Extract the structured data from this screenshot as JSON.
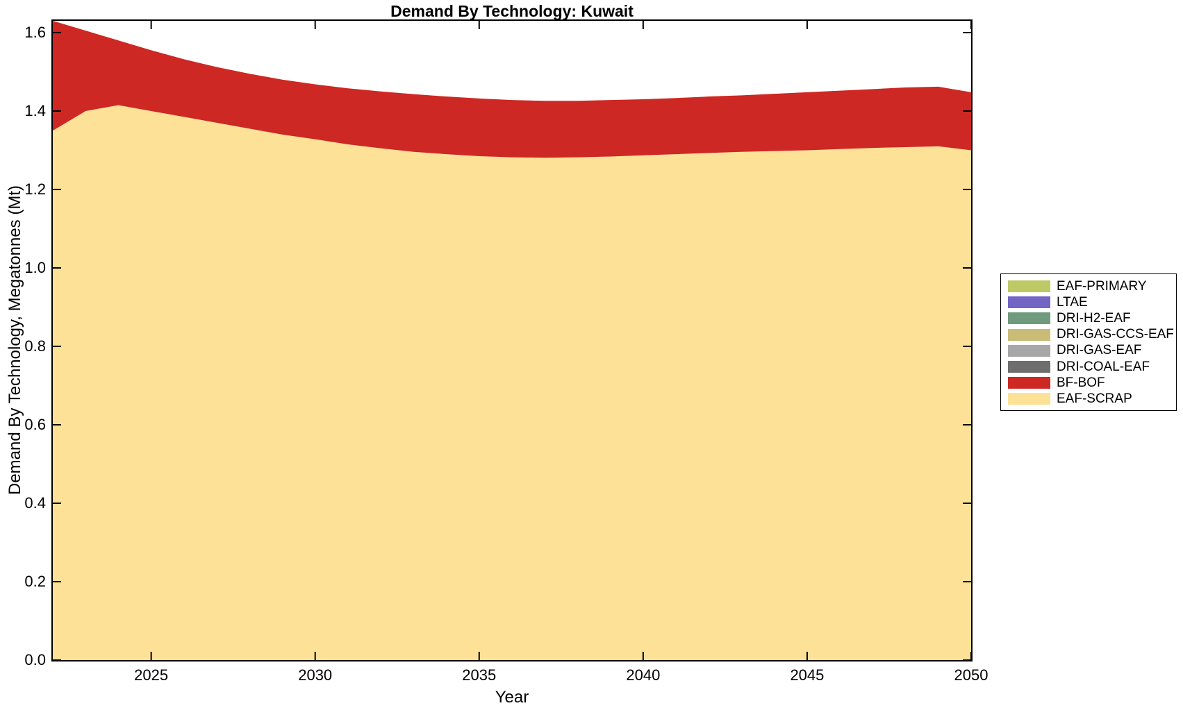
{
  "chart_data": {
    "type": "area",
    "stacked": true,
    "title": "Demand By Technology: Kuwait",
    "xlabel": "Year",
    "ylabel": "Demand By Technology, Megatonnes (Mt)",
    "grid": false,
    "box": true,
    "tick_direction": "in",
    "axis_color": "#000000",
    "xlim": [
      2022,
      2050
    ],
    "ylim": [
      0,
      1.63
    ],
    "xticks": [
      2025,
      2030,
      2035,
      2040,
      2045,
      2050
    ],
    "yticks": [
      0.0,
      0.2,
      0.4,
      0.6,
      0.8,
      1.0,
      1.2,
      1.4,
      1.6
    ],
    "ytick_labels": [
      "0.0",
      "0.2",
      "0.4",
      "0.6",
      "0.8",
      "1.0",
      "1.2",
      "1.4",
      "1.6"
    ],
    "x": [
      2022,
      2023,
      2024,
      2025,
      2026,
      2027,
      2028,
      2029,
      2030,
      2031,
      2032,
      2033,
      2034,
      2035,
      2036,
      2037,
      2038,
      2039,
      2040,
      2041,
      2042,
      2043,
      2044,
      2045,
      2046,
      2047,
      2048,
      2049,
      2050
    ],
    "series_note": "series listed bottom-to-top of the stack; series with empty values have zero (not visible) area",
    "series": [
      {
        "name": "EAF-SCRAP",
        "color": "#fce197",
        "values": [
          1.35,
          1.4,
          1.415,
          1.4,
          1.385,
          1.37,
          1.355,
          1.34,
          1.328,
          1.315,
          1.305,
          1.296,
          1.29,
          1.285,
          1.282,
          1.281,
          1.282,
          1.284,
          1.287,
          1.29,
          1.293,
          1.296,
          1.298,
          1.3,
          1.303,
          1.306,
          1.308,
          1.31,
          1.3
        ]
      },
      {
        "name": "BF-BOF",
        "color": "#cd2823",
        "values": [
          0.28,
          0.205,
          0.165,
          0.155,
          0.147,
          0.142,
          0.14,
          0.14,
          0.14,
          0.143,
          0.145,
          0.147,
          0.147,
          0.147,
          0.146,
          0.145,
          0.144,
          0.144,
          0.143,
          0.143,
          0.144,
          0.144,
          0.146,
          0.148,
          0.149,
          0.15,
          0.152,
          0.152,
          0.148
        ]
      },
      {
        "name": "DRI-COAL-EAF",
        "color": "#6e6e6e",
        "values": []
      },
      {
        "name": "DRI-GAS-EAF",
        "color": "#a7a7a7",
        "values": []
      },
      {
        "name": "DRI-GAS-CCS-EAF",
        "color": "#c9bc77",
        "values": []
      },
      {
        "name": "DRI-H2-EAF",
        "color": "#6f9a7d",
        "values": []
      },
      {
        "name": "LTAE",
        "color": "#7265c4",
        "values": []
      },
      {
        "name": "EAF-PRIMARY",
        "color": "#bdc964",
        "values": []
      }
    ],
    "legend_position": "outside-right"
  },
  "legend": {
    "items": [
      {
        "label": "EAF-PRIMARY",
        "color": "#bdc964"
      },
      {
        "label": "LTAE",
        "color": "#7265c4"
      },
      {
        "label": "DRI-H2-EAF",
        "color": "#6f9a7d"
      },
      {
        "label": "DRI-GAS-CCS-EAF",
        "color": "#c9bc77"
      },
      {
        "label": "DRI-GAS-EAF",
        "color": "#a7a7a7"
      },
      {
        "label": "DRI-COAL-EAF",
        "color": "#6e6e6e"
      },
      {
        "label": "BF-BOF",
        "color": "#cd2823"
      },
      {
        "label": "EAF-SCRAP",
        "color": "#fce197"
      }
    ]
  }
}
